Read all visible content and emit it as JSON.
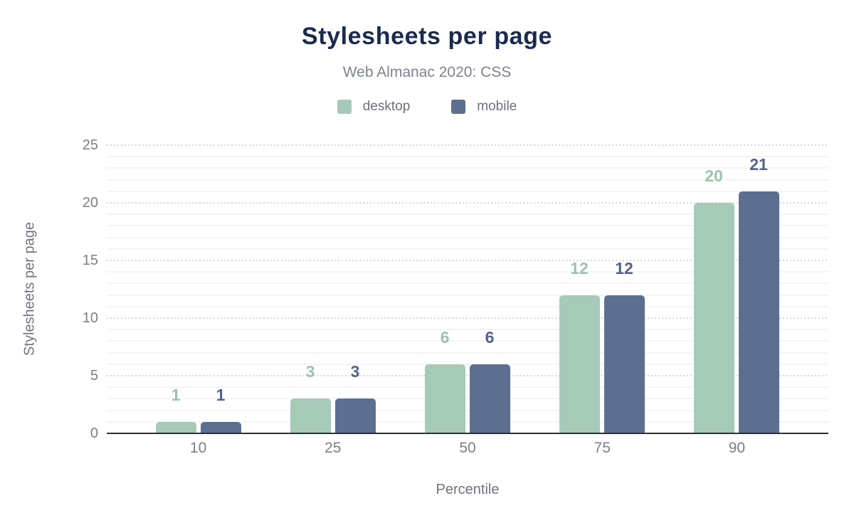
{
  "chart_data": {
    "type": "bar",
    "title": "Stylesheets per page",
    "subtitle": "Web Almanac 2020: CSS",
    "categories": [
      "10",
      "25",
      "50",
      "75",
      "90"
    ],
    "series": [
      {
        "name": "desktop",
        "color": "#a6cab8",
        "label_color": "#9cc3ae",
        "values": [
          1,
          3,
          6,
          12,
          20
        ]
      },
      {
        "name": "mobile",
        "color": "#5d6f90",
        "label_color": "#50648a",
        "values": [
          1,
          3,
          6,
          12,
          21
        ]
      }
    ],
    "xlabel": "Percentile",
    "ylabel": "Stylesheets per page",
    "ylim": [
      0,
      25
    ],
    "yticks": [
      0,
      5,
      10,
      15,
      20,
      25
    ],
    "major_grid_step": 5,
    "minor_grid_step": 1,
    "grid": "dotted major gridlines every 5, faint minor lines every 1",
    "legend_position": "top"
  },
  "styles": {
    "background": "#ffffff",
    "title_color": "#1b2a4e",
    "subtitle_color": "#7d838e",
    "legend_text_color": "#6b7178",
    "tick_color": "#7a7f87",
    "axis_title_color": "#6e747c",
    "baseline_color": "#2f2f2f",
    "major_grid_color": "#d6d6d6",
    "minor_grid_color": "#f5f4f4"
  }
}
